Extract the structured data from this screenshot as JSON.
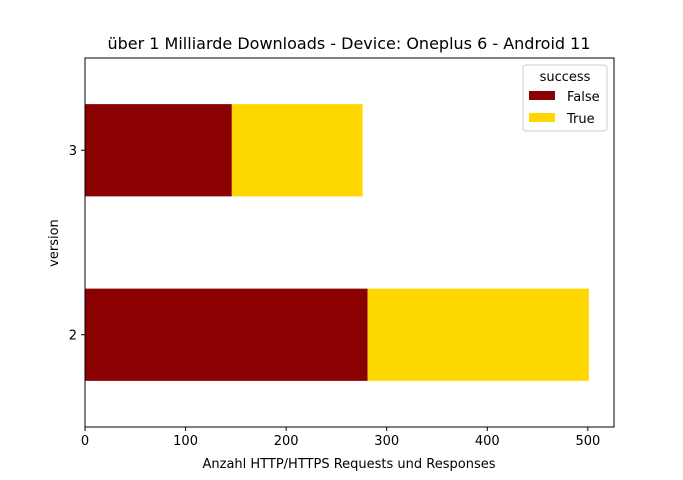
{
  "chart_data": {
    "type": "bar",
    "orientation": "horizontal",
    "stacked": true,
    "title": "über 1 Milliarde Downloads -  Device: Oneplus 6 - Android 11",
    "xlabel": "Anzahl HTTP/HTTPS Requests und Responses",
    "ylabel": "version",
    "categories": [
      "2",
      "3"
    ],
    "series": [
      {
        "name": "False",
        "values": [
          281,
          146
        ],
        "color": "#8b0000"
      },
      {
        "name": "True",
        "values": [
          220,
          130
        ],
        "color": "#ffd700"
      }
    ],
    "xlim": [
      0,
      526
    ],
    "xticks": [
      0,
      100,
      200,
      300,
      400,
      500
    ],
    "grid": false,
    "legend": {
      "title": "success",
      "placement": "upper right"
    }
  }
}
